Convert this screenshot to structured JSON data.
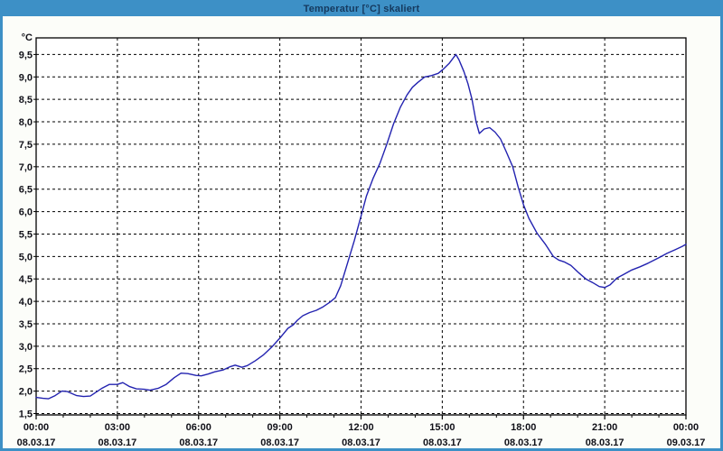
{
  "window": {
    "title": "Temperatur [°C] skaliert",
    "titlebar_color": "#3d90c6",
    "title_text_color": "#15395e",
    "border_color": "#3d90c6",
    "client_background": "#fcfdf9",
    "plot_background": "#ffffff"
  },
  "chart_data": {
    "type": "line",
    "title": "Temperatur [°C] skaliert",
    "xlabel": "",
    "ylabel": "°C",
    "grid": "dashed-black",
    "legend": "none",
    "axis_color": "#000000",
    "line_color": "#2323b0",
    "xlim_hours": [
      0,
      24
    ],
    "ylim": [
      1.5,
      9.87
    ],
    "x_minor_tick_interval_hours": 1,
    "x_ticks": [
      {
        "h": 0,
        "time": "00:00",
        "date": "08.03.17"
      },
      {
        "h": 3,
        "time": "03:00",
        "date": "08.03.17"
      },
      {
        "h": 6,
        "time": "06:00",
        "date": "08.03.17"
      },
      {
        "h": 9,
        "time": "09:00",
        "date": "08.03.17"
      },
      {
        "h": 12,
        "time": "12:00",
        "date": "08.03.17"
      },
      {
        "h": 15,
        "time": "15:00",
        "date": "08.03.17"
      },
      {
        "h": 18,
        "time": "18:00",
        "date": "08.03.17"
      },
      {
        "h": 21,
        "time": "21:00",
        "date": "08.03.17"
      },
      {
        "h": 24,
        "time": "00:00",
        "date": "09.03.17"
      }
    ],
    "y_ticks": [
      {
        "v": 1.5,
        "label": "1,5"
      },
      {
        "v": 2.0,
        "label": "2,0"
      },
      {
        "v": 2.5,
        "label": "2,5"
      },
      {
        "v": 3.0,
        "label": "3,0"
      },
      {
        "v": 3.5,
        "label": "3,5"
      },
      {
        "v": 4.0,
        "label": "4,0"
      },
      {
        "v": 4.5,
        "label": "4,5"
      },
      {
        "v": 5.0,
        "label": "5,0"
      },
      {
        "v": 5.5,
        "label": "5,5"
      },
      {
        "v": 6.0,
        "label": "6,0"
      },
      {
        "v": 6.5,
        "label": "6,5"
      },
      {
        "v": 7.0,
        "label": "7,0"
      },
      {
        "v": 7.5,
        "label": "7,5"
      },
      {
        "v": 8.0,
        "label": "8,0"
      },
      {
        "v": 8.5,
        "label": "8,5"
      },
      {
        "v": 9.0,
        "label": "9,0"
      },
      {
        "v": 9.5,
        "label": "9,5"
      }
    ],
    "series": [
      {
        "name": "Temperatur",
        "unit": "°C",
        "points_hours_temp": [
          [
            0.0,
            1.86
          ],
          [
            0.25,
            1.84
          ],
          [
            0.45,
            1.83
          ],
          [
            0.7,
            1.9
          ],
          [
            0.95,
            2.0
          ],
          [
            1.15,
            1.99
          ],
          [
            1.5,
            1.9
          ],
          [
            1.75,
            1.88
          ],
          [
            2.0,
            1.89
          ],
          [
            2.2,
            1.97
          ],
          [
            2.45,
            2.07
          ],
          [
            2.7,
            2.15
          ],
          [
            3.0,
            2.15
          ],
          [
            3.2,
            2.19
          ],
          [
            3.45,
            2.1
          ],
          [
            3.7,
            2.05
          ],
          [
            4.0,
            2.04
          ],
          [
            4.2,
            2.02
          ],
          [
            4.5,
            2.06
          ],
          [
            4.8,
            2.15
          ],
          [
            5.1,
            2.3
          ],
          [
            5.35,
            2.4
          ],
          [
            5.6,
            2.39
          ],
          [
            5.9,
            2.35
          ],
          [
            6.1,
            2.34
          ],
          [
            6.35,
            2.38
          ],
          [
            6.6,
            2.43
          ],
          [
            6.9,
            2.47
          ],
          [
            7.15,
            2.54
          ],
          [
            7.35,
            2.58
          ],
          [
            7.6,
            2.53
          ],
          [
            7.8,
            2.57
          ],
          [
            8.1,
            2.68
          ],
          [
            8.4,
            2.81
          ],
          [
            8.7,
            2.98
          ],
          [
            9.0,
            3.18
          ],
          [
            9.3,
            3.4
          ],
          [
            9.5,
            3.48
          ],
          [
            9.65,
            3.58
          ],
          [
            9.85,
            3.68
          ],
          [
            10.1,
            3.75
          ],
          [
            10.35,
            3.8
          ],
          [
            10.6,
            3.88
          ],
          [
            10.85,
            3.98
          ],
          [
            11.05,
            4.08
          ],
          [
            11.25,
            4.35
          ],
          [
            11.5,
            4.85
          ],
          [
            11.75,
            5.35
          ],
          [
            12.0,
            5.9
          ],
          [
            12.2,
            6.35
          ],
          [
            12.45,
            6.75
          ],
          [
            12.7,
            7.08
          ],
          [
            12.95,
            7.5
          ],
          [
            13.2,
            7.95
          ],
          [
            13.45,
            8.32
          ],
          [
            13.7,
            8.6
          ],
          [
            13.9,
            8.77
          ],
          [
            14.1,
            8.88
          ],
          [
            14.35,
            9.0
          ],
          [
            14.6,
            9.03
          ],
          [
            14.85,
            9.08
          ],
          [
            15.05,
            9.18
          ],
          [
            15.25,
            9.3
          ],
          [
            15.4,
            9.42
          ],
          [
            15.5,
            9.5
          ],
          [
            15.62,
            9.38
          ],
          [
            15.8,
            9.12
          ],
          [
            15.95,
            8.85
          ],
          [
            16.1,
            8.5
          ],
          [
            16.25,
            8.0
          ],
          [
            16.37,
            7.74
          ],
          [
            16.55,
            7.84
          ],
          [
            16.75,
            7.87
          ],
          [
            16.95,
            7.77
          ],
          [
            17.15,
            7.62
          ],
          [
            17.35,
            7.35
          ],
          [
            17.6,
            7.0
          ],
          [
            17.8,
            6.55
          ],
          [
            18.0,
            6.15
          ],
          [
            18.2,
            5.85
          ],
          [
            18.5,
            5.52
          ],
          [
            18.8,
            5.28
          ],
          [
            19.1,
            5.0
          ],
          [
            19.3,
            4.92
          ],
          [
            19.5,
            4.88
          ],
          [
            19.75,
            4.8
          ],
          [
            20.05,
            4.63
          ],
          [
            20.3,
            4.5
          ],
          [
            20.55,
            4.42
          ],
          [
            20.8,
            4.33
          ],
          [
            21.0,
            4.31
          ],
          [
            21.2,
            4.37
          ],
          [
            21.45,
            4.52
          ],
          [
            21.7,
            4.6
          ],
          [
            22.0,
            4.7
          ],
          [
            22.3,
            4.77
          ],
          [
            22.6,
            4.85
          ],
          [
            23.0,
            4.97
          ],
          [
            23.3,
            5.07
          ],
          [
            23.6,
            5.15
          ],
          [
            23.85,
            5.22
          ],
          [
            24.0,
            5.27
          ]
        ]
      }
    ]
  }
}
